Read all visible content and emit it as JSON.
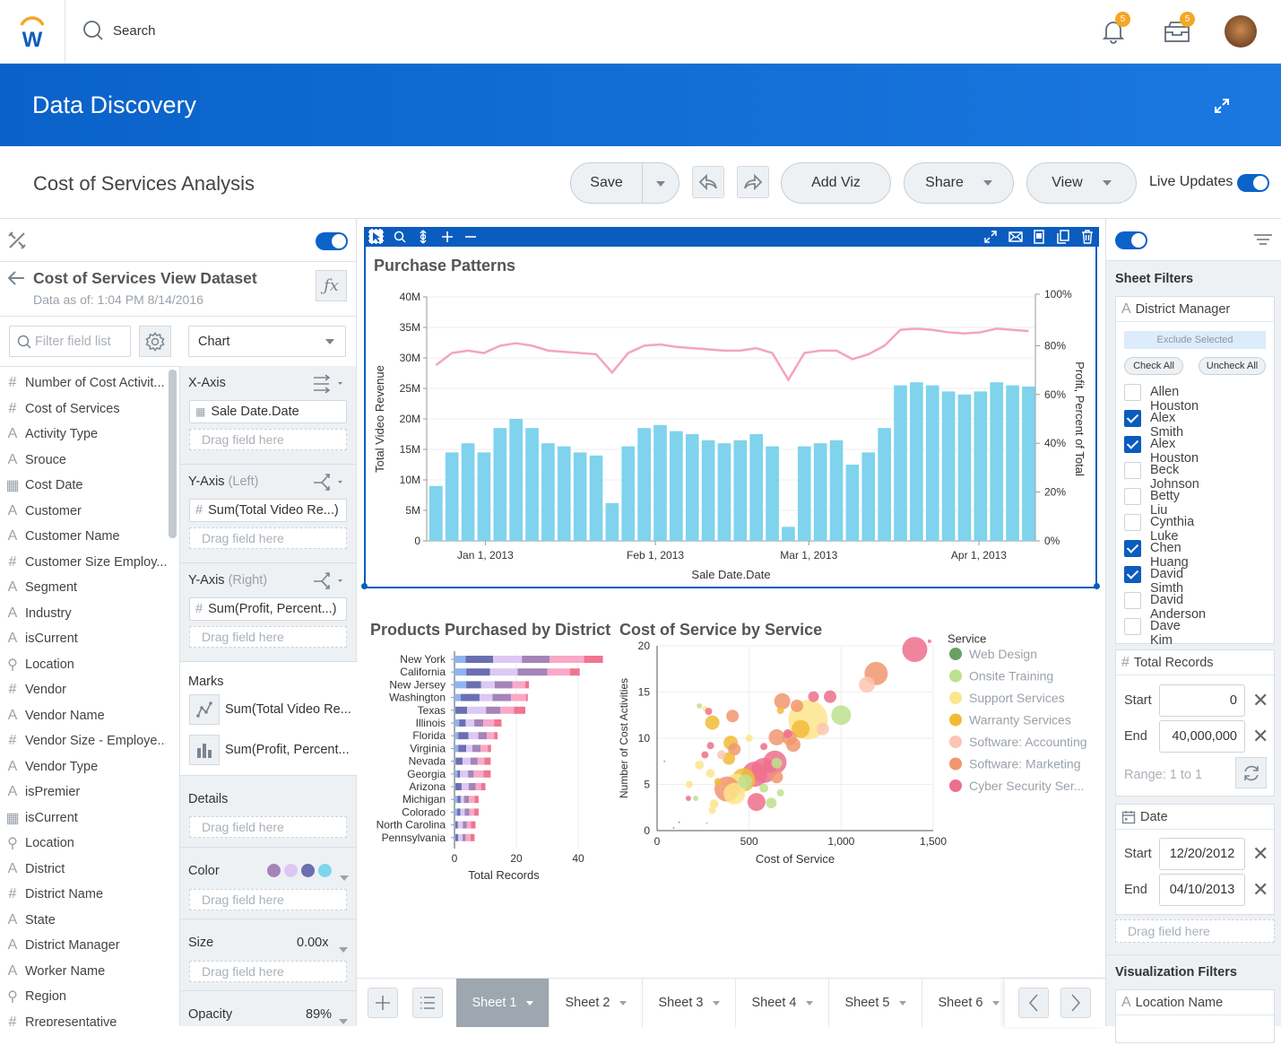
{
  "topbar": {
    "logo": "W",
    "search_placeholder": "Search",
    "notifications_count": "5",
    "inbox_count": "5"
  },
  "banner": {
    "title": "Data Discovery"
  },
  "toolbar": {
    "title": "Cost of Services Analysis",
    "save": "Save",
    "add_viz": "Add Viz",
    "share": "Share",
    "view": "View",
    "live_updates": "Live Updates",
    "live_updates_on": true
  },
  "dataset": {
    "title": "Cost of Services View Dataset",
    "subtitle": "Data as of: 1:04 PM 8/14/2016",
    "filter_placeholder": "Filter field list",
    "chart_type": "Chart",
    "fields": [
      {
        "type": "number",
        "label": "Number of Cost Activit..."
      },
      {
        "type": "number",
        "label": "Cost of Services"
      },
      {
        "type": "text",
        "label": "Activity Type"
      },
      {
        "type": "text",
        "label": "Srouce"
      },
      {
        "type": "date",
        "label": "Cost Date"
      },
      {
        "type": "text",
        "label": "Customer"
      },
      {
        "type": "text",
        "label": "Customer Name"
      },
      {
        "type": "number",
        "label": "Customer Size Employ..."
      },
      {
        "type": "text",
        "label": "Segment"
      },
      {
        "type": "text",
        "label": "Industry"
      },
      {
        "type": "text",
        "label": "isCurrent"
      },
      {
        "type": "location",
        "label": "Location"
      },
      {
        "type": "number",
        "label": "Vendor"
      },
      {
        "type": "text",
        "label": "Vendor Name"
      },
      {
        "type": "number",
        "label": "Vendor Size - Employe..."
      },
      {
        "type": "text",
        "label": "Vendor Type"
      },
      {
        "type": "text",
        "label": "isPremier"
      },
      {
        "type": "date",
        "label": "isCurrent"
      },
      {
        "type": "location",
        "label": "Location"
      },
      {
        "type": "text",
        "label": "District"
      },
      {
        "type": "number",
        "label": "District Name"
      },
      {
        "type": "text",
        "label": "State"
      },
      {
        "type": "text",
        "label": "District Manager"
      },
      {
        "type": "text",
        "label": "Worker Name"
      },
      {
        "type": "location",
        "label": "Region"
      },
      {
        "type": "number",
        "label": "Rrepresentative"
      }
    ]
  },
  "config": {
    "drag_placeholder": "Drag field here",
    "x_axis": {
      "label": "X-Axis",
      "field": "Sale Date.Date"
    },
    "y_left": {
      "label": "Y-Axis",
      "qualifier": "(Left)",
      "field": "Sum(Total Video Re...)"
    },
    "y_right": {
      "label": "Y-Axis",
      "qualifier": "(Right)",
      "field": "Sum(Profit, Percent...)"
    },
    "marks": {
      "label": "Marks",
      "items": [
        "Sum(Total Video Re...",
        "Sum(Profit, Percent..."
      ]
    },
    "details": {
      "label": "Details"
    },
    "color": {
      "label": "Color",
      "swatches": [
        "#a584b8",
        "#dcc8f2",
        "#6b6fb0",
        "#7dd6ec"
      ]
    },
    "size": {
      "label": "Size",
      "value": "0.00x"
    },
    "opacity": {
      "label": "Opacity",
      "value": "89%"
    }
  },
  "chart_data": [
    {
      "type": "bar+line",
      "title": "Purchase Patterns",
      "xlabel": "Sale Date.Date",
      "ylabel": "Total Video Revenue",
      "ylabel_right": "Profit, Percent of Total",
      "x_domain": [
        "2012-12-20",
        "2013-04-10"
      ],
      "x_ticks": [
        {
          "date": "2013-01-01",
          "label": "Jan 1, 2013"
        },
        {
          "date": "2013-02-01",
          "label": "Feb 1, 2013"
        },
        {
          "date": "2013-03-01",
          "label": "Mar 1, 2013"
        },
        {
          "date": "2013-04-01",
          "label": "Apr 1, 2013"
        }
      ],
      "ylim": [
        0,
        40000000
      ],
      "y_ticks": [
        "0",
        "5M",
        "10M",
        "15M",
        "20M",
        "25M",
        "30M",
        "35M",
        "40M"
      ],
      "ylim_right": [
        0,
        100
      ],
      "y_ticks_right": [
        "0%",
        "20%",
        "40%",
        "60%",
        "80%",
        "100%"
      ],
      "bar_color": "#7fd3ec",
      "line_color": "#f4a3c4",
      "bars_millions": [
        9,
        14.5,
        16,
        14.5,
        18.5,
        20,
        18.5,
        16,
        15.5,
        14.5,
        14,
        6.2,
        15.5,
        18.5,
        19,
        18,
        17.5,
        16.5,
        16,
        16.5,
        17.5,
        15.5,
        2.3,
        15.5,
        16,
        16.5,
        12.5,
        14.5,
        18.5,
        25.5,
        26,
        25.5,
        24.5,
        24,
        24.5,
        26,
        25.5,
        25.3
      ],
      "line_percent": [
        72,
        77,
        78,
        77,
        80,
        81,
        80,
        78,
        77.5,
        77,
        76.5,
        69,
        77,
        80,
        80.5,
        79.5,
        79,
        78.5,
        78,
        78,
        79,
        77,
        66,
        77,
        78,
        78,
        74.5,
        76.5,
        80,
        86.5,
        87,
        86.5,
        85.5,
        85,
        85.5,
        87,
        86.5,
        86
      ]
    },
    {
      "type": "bar",
      "orientation": "horizontal-stacked",
      "title": "Products Purchased by District",
      "xlabel": "Total Records",
      "xlim": [
        0,
        48
      ],
      "x_ticks": [
        "0",
        "20",
        "40"
      ],
      "segment_colors": [
        "#8fb4f0",
        "#6b6fb0",
        "#dcc8f2",
        "#a584b8",
        "#f9a8c8",
        "#ef7590"
      ],
      "categories": [
        "New York",
        "California",
        "New Jersey",
        "Washington",
        "Texas",
        "Illinois",
        "Florida",
        "Virginia",
        "Nevada",
        "Georgia",
        "Arizona",
        "Michigan",
        "Colorado",
        "North Carolina",
        "Pennsylvania"
      ],
      "segments": [
        [
          3.6,
          8.9,
          9.3,
          9,
          11.1,
          6.1
        ],
        [
          3.8,
          7.7,
          8.9,
          9.6,
          7.3,
          3.2
        ],
        [
          3.8,
          4.8,
          4.4,
          5.7,
          4.2,
          1.2
        ],
        [
          2,
          6.1,
          4.2,
          6,
          4.8,
          0.6
        ],
        [
          0.3,
          3.8,
          6.1,
          4.6,
          4.4,
          3.7
        ],
        [
          1.5,
          2.1,
          2.8,
          2.9,
          3.5,
          2.4
        ],
        [
          1.2,
          3.3,
          3.2,
          2.8,
          2.4,
          1
        ],
        [
          1.2,
          2.6,
          2,
          2.6,
          2.4,
          1
        ],
        [
          0.4,
          2.2,
          2.6,
          2.3,
          2.2,
          2
        ],
        [
          1,
          0.8,
          2.6,
          1.8,
          3.2,
          2.3
        ],
        [
          0.3,
          2,
          2.3,
          2.2,
          1.8,
          1.4
        ],
        [
          1,
          1,
          1.1,
          1.6,
          1.8,
          1.3
        ],
        [
          0.9,
          1,
          1.4,
          1.5,
          1.6,
          1.4
        ],
        [
          0.3,
          0.8,
          1.6,
          1.3,
          1.3,
          1.5
        ],
        [
          0.3,
          0.9,
          1.4,
          1,
          1.6,
          1.3
        ]
      ]
    },
    {
      "type": "scatter",
      "title": "Cost of Service by Service",
      "xlabel": "Cost of Service",
      "ylabel": "Number of Cost Activities",
      "xlim": [
        0,
        1500
      ],
      "ylim": [
        0,
        20
      ],
      "x_ticks": [
        "0",
        "500",
        "1,000",
        "1,500"
      ],
      "y_ticks": [
        "0",
        "5",
        "10",
        "15",
        "20"
      ],
      "legend_title": "Service",
      "legend_position": "right",
      "series": [
        {
          "name": "Web Design",
          "color": "#6aa062"
        },
        {
          "name": "Onsite Training",
          "color": "#bde08e"
        },
        {
          "name": "Support Services",
          "color": "#fde58c"
        },
        {
          "name": "Warranty Services",
          "color": "#f1bb38"
        },
        {
          "name": "Software: Accounting",
          "color": "#fcc5b3"
        },
        {
          "name": "Software: Marketing",
          "color": "#f1966e"
        },
        {
          "name": "Cyber Security Ser...",
          "color": "#ee6f8c"
        }
      ],
      "points": [
        [
          1400,
          19.6,
          14,
          6
        ],
        [
          1480,
          20.5,
          2,
          6
        ],
        [
          1190,
          17,
          13,
          5
        ],
        [
          1140,
          15.8,
          9,
          4
        ],
        [
          1000,
          12.5,
          11,
          1
        ],
        [
          820,
          12,
          22,
          2
        ],
        [
          850,
          14.5,
          6,
          6
        ],
        [
          940,
          14.5,
          7,
          6
        ],
        [
          680,
          14,
          9,
          5
        ],
        [
          760,
          13.5,
          7,
          5
        ],
        [
          670,
          13,
          4,
          3
        ],
        [
          900,
          11,
          7,
          4
        ],
        [
          780,
          11,
          10,
          3
        ],
        [
          720,
          10,
          8,
          5
        ],
        [
          740,
          9.3,
          8,
          5
        ],
        [
          650,
          10.1,
          9,
          5
        ],
        [
          710,
          10.5,
          5,
          6
        ],
        [
          580,
          9.1,
          4,
          6
        ],
        [
          640,
          7.4,
          13,
          6
        ],
        [
          580,
          6.5,
          14,
          6
        ],
        [
          530,
          6.1,
          14,
          6
        ],
        [
          470,
          5.5,
          13,
          3
        ],
        [
          430,
          5,
          12,
          2
        ],
        [
          380,
          4.5,
          14,
          5
        ],
        [
          420,
          4,
          12,
          2
        ],
        [
          540,
          3.1,
          10,
          6
        ],
        [
          620,
          3,
          6,
          1
        ],
        [
          400,
          9.5,
          8,
          3
        ],
        [
          420,
          8.8,
          7,
          5
        ],
        [
          390,
          7.8,
          7,
          3
        ],
        [
          350,
          8.2,
          5,
          4
        ],
        [
          300,
          11.7,
          8,
          3
        ],
        [
          410,
          12.4,
          7,
          5
        ],
        [
          230,
          13.5,
          3,
          1
        ],
        [
          260,
          13.2,
          3,
          2
        ],
        [
          280,
          12.9,
          4,
          6
        ],
        [
          290,
          9.2,
          4,
          6
        ],
        [
          230,
          7.1,
          5,
          2
        ],
        [
          290,
          6.2,
          5,
          2
        ],
        [
          330,
          5.3,
          4,
          3
        ],
        [
          310,
          2.9,
          5,
          2
        ],
        [
          300,
          2.2,
          4,
          2
        ],
        [
          170,
          3.5,
          3,
          6
        ],
        [
          210,
          3.5,
          3,
          1
        ],
        [
          175,
          5,
          4,
          2
        ],
        [
          580,
          4.6,
          5,
          1
        ],
        [
          670,
          4.1,
          4,
          1
        ],
        [
          480,
          5.3,
          8,
          1
        ],
        [
          650,
          5.8,
          7,
          5
        ],
        [
          650,
          7.3,
          6,
          1
        ],
        [
          500,
          10,
          4,
          2
        ],
        [
          260,
          8.2,
          4,
          6
        ],
        [
          40,
          7.5,
          1,
          6
        ],
        [
          90,
          0.3,
          1,
          0
        ],
        [
          270,
          0.8,
          1,
          3
        ],
        [
          120,
          0.9,
          1,
          0
        ]
      ]
    }
  ],
  "sheets": {
    "tabs": [
      "Sheet 1",
      "Sheet 2",
      "Sheet 3",
      "Sheet 4",
      "Sheet 5",
      "Sheet 6"
    ],
    "active": 0
  },
  "filters": {
    "title": "Sheet Filters",
    "district_manager": {
      "label": "District Manager",
      "exclude": "Exclude Selected",
      "check_all": "Check All",
      "uncheck_all": "Uncheck All",
      "items": [
        {
          "name": "Allen Houston",
          "checked": false
        },
        {
          "name": "Alex Smith",
          "checked": true
        },
        {
          "name": "Alex Houston",
          "checked": true
        },
        {
          "name": "Beck Johnson",
          "checked": false
        },
        {
          "name": "Betty Liu",
          "checked": false
        },
        {
          "name": "Cynthia Luke",
          "checked": false
        },
        {
          "name": "Chen Huang",
          "checked": true
        },
        {
          "name": "David Simth",
          "checked": true
        },
        {
          "name": "David Anderson",
          "checked": false
        },
        {
          "name": "Dave Kim",
          "checked": false
        }
      ]
    },
    "total_records": {
      "label": "Total Records",
      "start_label": "Start",
      "start": "0",
      "end_label": "End",
      "end": "40,000,000",
      "range": "Range: 1 to 1"
    },
    "date": {
      "label": "Date",
      "start_label": "Start",
      "start": "12/20/2012",
      "end_label": "End",
      "end": "04/10/2013"
    },
    "drag_placeholder": "Drag field here",
    "viz_title": "Visualization Filters",
    "location_name": {
      "label": "Location Name"
    }
  }
}
